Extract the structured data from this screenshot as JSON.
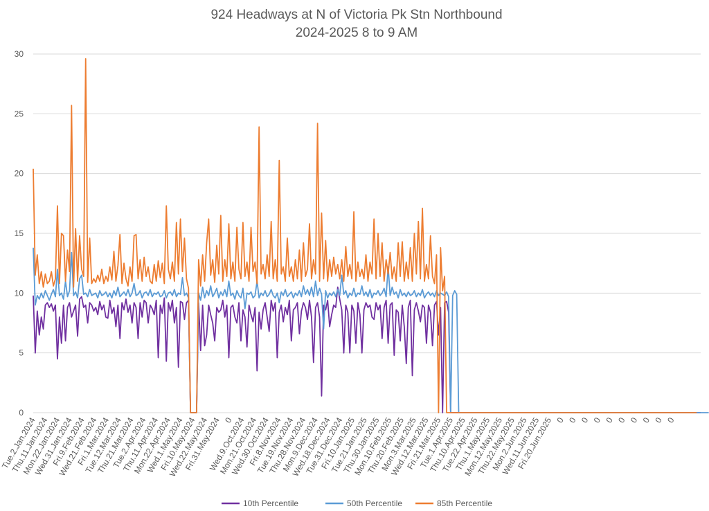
{
  "chart_data": {
    "type": "line",
    "title": "924  Headways at N of Victoria Pk Stn Northbound",
    "subtitle": "2024-2025 8 to 9 AM",
    "xlabel": "",
    "ylabel": "",
    "ylim": [
      0,
      30
    ],
    "yticks": [
      0,
      5,
      10,
      15,
      20,
      25,
      30
    ],
    "grid": true,
    "legend_position": "bottom",
    "x_tick_labels": [
      "Tue.2.Jan.2024",
      "Thu.11.Jan.2024",
      "Mon.22.Jan.2024",
      "Wed.31.Jan.2024",
      "Fri.9.Feb.2024",
      "Wed.21.Feb.2024",
      "Fri.1.Mar.2024",
      "Tue.12.Mar.2024",
      "Thu.21.Mar.2024",
      "Tue.2.Apr.2024",
      "Thu.11.Apr.2024",
      "Mon.22.Apr.2024",
      "Wed.1.May.2024",
      "Fri.10.May.2024",
      "Wed.22.May.2024",
      "Fri.31.May.2024",
      "0",
      "Wed.9.Oct.2024",
      "Mon.21.Oct.2024",
      "Wed.30.Oct.2024",
      "Fri.8.Nov.2024",
      "Tue.19.Nov.2024",
      "Thu.28.Nov.2024",
      "Mon.9.Dec.2024",
      "Wed.18.Dec.2024",
      "Tue.31.Dec.2024",
      "Fri.10.Jan.2025",
      "Tue.21.Jan.2025",
      "Thu.30.Jan.2025",
      "Mon.10.Feb.2025",
      "Thu.20.Feb.2025",
      "Mon.3.Mar.2025",
      "Wed.12.Mar.2025",
      "Fri.21.Mar.2025",
      "Tue.1.Apr.2025",
      "Thu.10.Apr.2025",
      "Tue.22.Apr.2025",
      "Thu.1.May.2025",
      "Mon.12.May.2025",
      "Thu.22.May.2025",
      "Mon.2.Jun.2025",
      "Wed.11.Jun.2025",
      "Fri.20.Jun.2025",
      "0",
      "0",
      "0",
      "0",
      "0",
      "0",
      "0",
      "0",
      "0",
      "0"
    ],
    "series": [
      {
        "name": "10th Percentile",
        "color": "#7030a0",
        "values": [
          9.8,
          5.0,
          8.5,
          6.5,
          8.0,
          7.0,
          9.0,
          9.2,
          8.8,
          9.1,
          8.5,
          9.0,
          4.5,
          8.0,
          5.8,
          9.0,
          6.0,
          8.8,
          9.2,
          8.0,
          8.5,
          9.0,
          6.4,
          9.5,
          9.7,
          8.8,
          9.0,
          7.5,
          9.2,
          9.0,
          8.5,
          8.8,
          8.2,
          9.3,
          8.6,
          9.0,
          8.0,
          7.9,
          9.4,
          8.3,
          8.8,
          7.2,
          9.0,
          6.2,
          9.2,
          8.6,
          9.5,
          8.4,
          9.0,
          7.5,
          9.2,
          8.8,
          6.2,
          9.2,
          8.0,
          9.4,
          9.2,
          7.5,
          9.0,
          8.7,
          8.2,
          9.4,
          4.6,
          9.0,
          8.3,
          9.6,
          4.3,
          9.2,
          8.5,
          9.4,
          7.5,
          8.8,
          3.8,
          9.3,
          9.2,
          7.8,
          9.2,
          9.4,
          0,
          0,
          0,
          0,
          9.2,
          5.2,
          9.0,
          5.6,
          6.5,
          9.0,
          8.2,
          7.5,
          6.0,
          8.8,
          8.4,
          8.6,
          9.4,
          8.0,
          9.0,
          4.6,
          8.8,
          9.0,
          8.0,
          7.5,
          9.2,
          6.0,
          8.6,
          8.0,
          5.5,
          9.0,
          8.2,
          7.6,
          8.8,
          3.5,
          8.4,
          7.0,
          8.6,
          9.2,
          8.0,
          6.8,
          9.4,
          8.5,
          9.2,
          4.6,
          8.4,
          9.0,
          7.6,
          8.8,
          8.2,
          9.4,
          6.0,
          8.6,
          8.8,
          9.2,
          6.6,
          8.5,
          9.2,
          8.8,
          7.8,
          9.4,
          8.0,
          4.2,
          8.8,
          9.2,
          8.0,
          1.4,
          9.0,
          8.6,
          9.4,
          7.2,
          8.2,
          9.0,
          8.8,
          10.5,
          9.5,
          8.6,
          5.0,
          9.0,
          8.4,
          5.0,
          9.0,
          8.5,
          5.8,
          9.2,
          8.2,
          5.0,
          8.6,
          9.2,
          8.8,
          9.0,
          8.0,
          7.8,
          9.2,
          8.6,
          9.0,
          6.2,
          8.8,
          9.4,
          5.8,
          9.0,
          9.2,
          4.8,
          8.6,
          8.4,
          6.0,
          9.0,
          7.2,
          4.1,
          8.8,
          9.4,
          3.1,
          8.6,
          9.2,
          8.5,
          7.6,
          9.0,
          8.8,
          5.8,
          9.0,
          8.4,
          5.6,
          9.0,
          9.3,
          6.5,
          8.8,
          0,
          9.2,
          9.3,
          8.4,
          0,
          0,
          0,
          0,
          0,
          0,
          0,
          0,
          0,
          0,
          0,
          0,
          0,
          0,
          0,
          0,
          0,
          0,
          0,
          0,
          0,
          0,
          0,
          0,
          0,
          0,
          0,
          0,
          0,
          0,
          0,
          0,
          0,
          0,
          0,
          0,
          0,
          0,
          0,
          0,
          0,
          0,
          0,
          0,
          0,
          0,
          0,
          0,
          0,
          0,
          0,
          0,
          0,
          0,
          0,
          0,
          0,
          0,
          0,
          0,
          0,
          0,
          0,
          0,
          0,
          0,
          0,
          0,
          0,
          0,
          0,
          0,
          0,
          0,
          0,
          0,
          0,
          0,
          0,
          0,
          0,
          0,
          0,
          0,
          0,
          0,
          0,
          0,
          0,
          0,
          0,
          0,
          0,
          0,
          0,
          0,
          0,
          0,
          0,
          0,
          0,
          0,
          0,
          0,
          0,
          0,
          0,
          0,
          0,
          0,
          0,
          0,
          0,
          0,
          0,
          0,
          0,
          0,
          0,
          0,
          0,
          0,
          0,
          0,
          0
        ]
      },
      {
        "name": "50th Percentile",
        "color": "#5b9bd5",
        "values": [
          13.8,
          9.0,
          9.8,
          9.5,
          10.0,
          9.6,
          10.2,
          9.8,
          9.4,
          9.9,
          10.3,
          9.7,
          12.0,
          9.8,
          10.0,
          9.5,
          11.0,
          9.7,
          10.2,
          13.4,
          9.8,
          10.1,
          9.6,
          11.2,
          11.5,
          9.9,
          10.0,
          9.7,
          10.3,
          9.8,
          9.9,
          10.0,
          9.6,
          10.2,
          9.8,
          9.9,
          10.1,
          9.7,
          10.0,
          9.6,
          10.2,
          9.8,
          10.5,
          9.7,
          9.9,
          10.1,
          9.8,
          10.3,
          9.7,
          10.0,
          10.8,
          9.8,
          9.9,
          10.2,
          9.6,
          10.0,
          10.1,
          9.8,
          10.3,
          9.7,
          10.0,
          9.9,
          10.1,
          9.7,
          9.8,
          10.2,
          9.6,
          10.0,
          10.1,
          9.8,
          10.3,
          9.7,
          10.0,
          9.9,
          11.3,
          9.8,
          10.0,
          9.6,
          0,
          0,
          0,
          0,
          10.0,
          9.4,
          10.5,
          9.6,
          10.2,
          9.8,
          10.6,
          9.7,
          10.0,
          10.4,
          9.6,
          10.1,
          9.8,
          10.3,
          9.7,
          11.0,
          9.8,
          10.0,
          9.5,
          10.2,
          9.8,
          9.6,
          10.4,
          8.7,
          10.0,
          9.9,
          10.1,
          9.6,
          9.8,
          11.0,
          9.6,
          10.0,
          9.8,
          10.2,
          9.7,
          9.9,
          10.3,
          9.8,
          9.6,
          10.0,
          9.2,
          10.1,
          9.8,
          10.3,
          9.7,
          9.9,
          10.1,
          9.6,
          10.0,
          9.8,
          10.2,
          9.7,
          10.6,
          9.9,
          10.3,
          9.8,
          10.5,
          9.7,
          11.0,
          9.8,
          10.4,
          9.9,
          7.0,
          10.2,
          9.6,
          10.0,
          9.8,
          10.1,
          9.7,
          10.3,
          9.8,
          11.5,
          9.9,
          10.2,
          9.6,
          10.0,
          9.8,
          10.4,
          9.7,
          10.0,
          9.9,
          10.6,
          9.8,
          10.1,
          9.7,
          10.3,
          9.6,
          10.0,
          9.9,
          10.2,
          9.8,
          10.0,
          10.4,
          9.7,
          12.2,
          9.8,
          10.5,
          9.9,
          10.1,
          9.6,
          10.3,
          9.8,
          10.0,
          9.7,
          10.1,
          9.8,
          9.9,
          10.2,
          9.7,
          10.0,
          9.8,
          10.3,
          9.6,
          9.9,
          10.1,
          9.8,
          10.0,
          9.7,
          10.2,
          9.8,
          10.0,
          9.9,
          9.8,
          10.1,
          9.7,
          0,
          9.8,
          10.2,
          9.9,
          0,
          0,
          0,
          0,
          0,
          0,
          0,
          0,
          0,
          0,
          0,
          0,
          0,
          0,
          0,
          0,
          0,
          0,
          0,
          0,
          0,
          0,
          0,
          0,
          0,
          0,
          0,
          0,
          0,
          0,
          0,
          0,
          0,
          0,
          0,
          0,
          0,
          0,
          0,
          0,
          0,
          0,
          0,
          0,
          0,
          0,
          0,
          0,
          0,
          0,
          0,
          0,
          0,
          0,
          0,
          0,
          0,
          0,
          0,
          0,
          0,
          0,
          0,
          0,
          0,
          0,
          0,
          0,
          0,
          0,
          0,
          0,
          0,
          0,
          0,
          0,
          0,
          0,
          0,
          0,
          0,
          0,
          0,
          0,
          0,
          0,
          0,
          0,
          0,
          0,
          0,
          0,
          0,
          0,
          0,
          0,
          0,
          0,
          0,
          0,
          0,
          0,
          0,
          0,
          0,
          0,
          0,
          0,
          0,
          0,
          0,
          0,
          0,
          0,
          0,
          0,
          0,
          0,
          0,
          0,
          0,
          0,
          0,
          0,
          0
        ]
      },
      {
        "name": "85th Percentile",
        "color": "#ed7d31",
        "values": [
          20.4,
          11.5,
          13.2,
          10.8,
          11.8,
          10.5,
          11.6,
          10.8,
          11.0,
          11.8,
          10.6,
          11.2,
          17.3,
          10.8,
          15.0,
          14.8,
          11.0,
          13.6,
          11.8,
          25.7,
          10.5,
          15.4,
          11.0,
          14.8,
          12.0,
          11.4,
          29.6,
          10.9,
          14.6,
          10.8,
          11.2,
          10.9,
          11.5,
          11.0,
          12.0,
          10.8,
          11.4,
          11.0,
          12.2,
          11.1,
          13.5,
          11.0,
          12.3,
          14.9,
          10.8,
          12.5,
          11.2,
          10.6,
          12.2,
          11.0,
          14.8,
          14.9,
          11.2,
          12.8,
          11.0,
          13.0,
          11.4,
          12.2,
          11.0,
          10.8,
          12.4,
          11.0,
          12.7,
          11.3,
          12.5,
          10.8,
          17.3,
          12.0,
          11.2,
          12.6,
          11.0,
          15.9,
          11.6,
          16.2,
          11.8,
          14.6,
          11.2,
          10.4,
          0,
          0,
          0,
          0,
          12.8,
          10.6,
          13.2,
          11.0,
          14.2,
          16.2,
          11.5,
          12.8,
          10.9,
          14.0,
          11.6,
          16.5,
          11.0,
          12.8,
          11.4,
          15.8,
          11.2,
          12.6,
          11.0,
          15.5,
          12.0,
          11.2,
          15.9,
          11.4,
          12.6,
          11.0,
          15.5,
          11.8,
          12.6,
          10.8,
          23.9,
          11.6,
          12.4,
          11.2,
          13.2,
          11.4,
          16.0,
          11.2,
          12.8,
          11.0,
          21.1,
          11.6,
          12.2,
          11.0,
          14.6,
          11.4,
          12.2,
          11.0,
          12.8,
          11.2,
          13.6,
          11.0,
          14.2,
          11.4,
          12.0,
          15.8,
          11.2,
          12.8,
          11.6,
          24.2,
          11.0,
          16.7,
          11.2,
          14.4,
          11.0,
          12.8,
          11.4,
          13.0,
          11.6,
          12.4,
          11.2,
          12.8,
          11.0,
          13.9,
          11.4,
          12.4,
          11.2,
          16.8,
          11.0,
          12.6,
          11.4,
          12.0,
          11.2,
          13.2,
          11.0,
          12.6,
          11.6,
          16.2,
          11.2,
          15.0,
          11.4,
          14.2,
          11.0,
          12.8,
          11.6,
          13.4,
          11.2,
          12.2,
          11.0,
          14.2,
          11.4,
          14.3,
          11.0,
          12.6,
          11.2,
          13.8,
          11.0,
          15.0,
          11.6,
          16.0,
          11.2,
          17.1,
          11.0,
          12.4,
          11.2,
          14.8,
          11.4,
          10.8,
          13.2,
          0,
          13.8,
          10.2,
          11.4,
          0,
          0,
          0,
          0,
          0,
          0,
          0,
          0,
          0,
          0,
          0,
          0,
          0,
          0,
          0,
          0,
          0,
          0,
          0,
          0,
          0,
          0,
          0,
          0,
          0,
          0,
          0,
          0,
          0,
          0,
          0,
          0,
          0,
          0,
          0,
          0,
          0,
          0,
          0,
          0,
          0,
          0,
          0,
          0,
          0,
          0,
          0,
          0,
          0,
          0,
          0,
          0,
          0,
          0,
          0,
          0,
          0,
          0,
          0,
          0,
          0,
          0,
          0,
          0,
          0,
          0,
          0,
          0,
          0,
          0,
          0,
          0,
          0,
          0,
          0,
          0,
          0,
          0,
          0,
          0,
          0,
          0,
          0,
          0,
          0,
          0,
          0,
          0,
          0,
          0,
          0,
          0,
          0,
          0,
          0,
          0,
          0,
          0,
          0,
          0,
          0,
          0,
          0,
          0,
          0,
          0,
          0,
          0,
          0,
          0,
          0,
          0,
          0,
          0,
          0,
          0,
          0,
          0,
          0,
          0,
          0,
          0,
          0,
          0,
          0
        ]
      }
    ]
  }
}
